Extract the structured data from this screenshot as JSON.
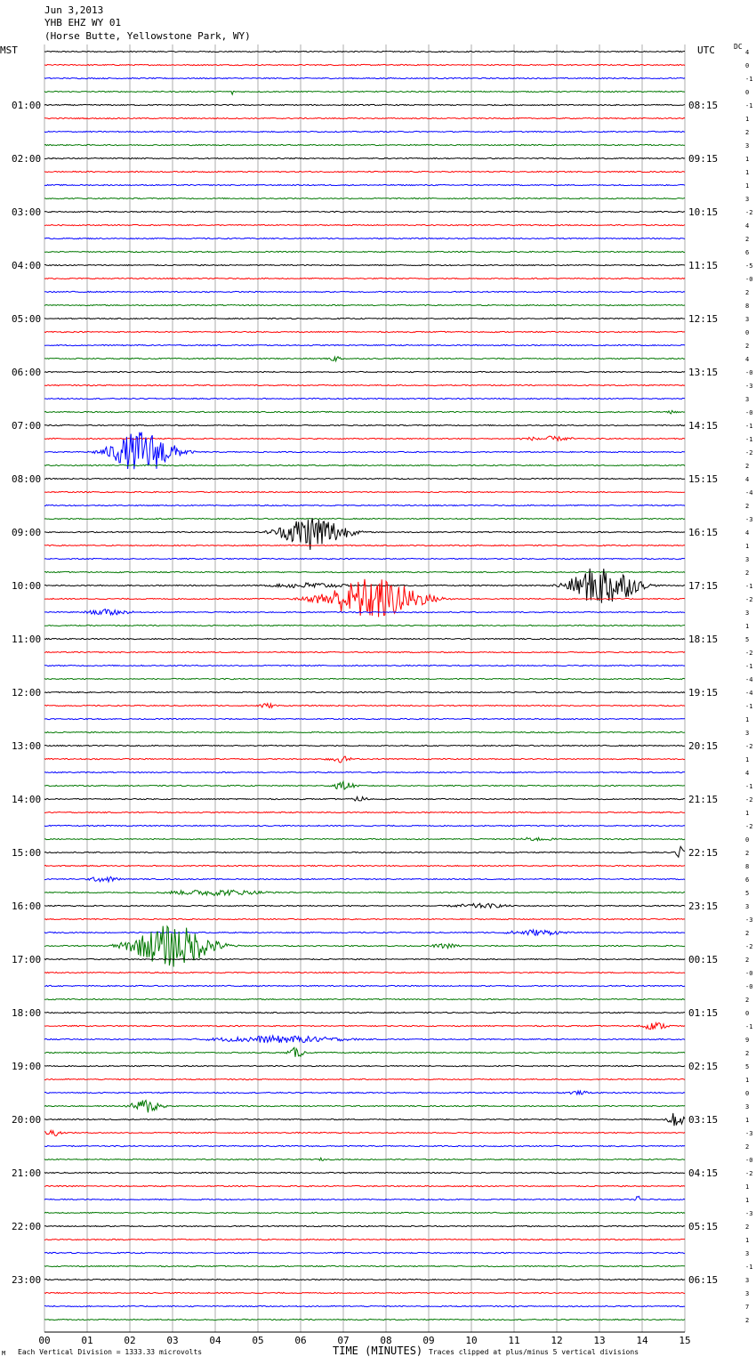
{
  "header": {
    "line1": "Jun 3,2013",
    "line2": "YHB EHZ WY 01",
    "line3": "(Horse Butte, Yellowstone Park, WY)"
  },
  "left_axis_title": "MST",
  "right_axis_title": "UTC",
  "dc_label": "DC",
  "footer": {
    "scale_note": "Each Vertical Division = 1333.33 microvolts",
    "clip_note": "Traces clipped at plus/minus 5 vertical divisions",
    "corner_mark": "M"
  },
  "colors": {
    "black": "#000000",
    "red": "#ff0000",
    "blue": "#0000ff",
    "green": "#007700",
    "grid": "#999999"
  },
  "chart_data": {
    "type": "line",
    "title": "YHB EHZ WY 01 (Horse Butte, Yellowstone Park, WY) Jun 3,2013",
    "xlabel": "TIME (MINUTES)",
    "xlim": [
      0,
      15
    ],
    "x_ticks": [
      "00",
      "01",
      "02",
      "03",
      "04",
      "05",
      "06",
      "07",
      "08",
      "09",
      "10",
      "11",
      "12",
      "13",
      "14",
      "15"
    ],
    "traces_per_hour": 4,
    "trace_colors": [
      "black",
      "red",
      "blue",
      "green"
    ],
    "left_hour_labels": [
      "01:00",
      "02:00",
      "03:00",
      "04:00",
      "05:00",
      "06:00",
      "07:00",
      "08:00",
      "09:00",
      "10:00",
      "11:00",
      "12:00",
      "13:00",
      "14:00",
      "15:00",
      "16:00",
      "17:00",
      "18:00",
      "19:00",
      "20:00",
      "21:00",
      "22:00",
      "23:00"
    ],
    "right_hour_labels": [
      "08:15",
      "09:15",
      "10:15",
      "11:15",
      "12:15",
      "13:15",
      "14:15",
      "15:15",
      "16:15",
      "17:15",
      "18:15",
      "19:15",
      "20:15",
      "21:15",
      "22:15",
      "23:15",
      "00:15",
      "01:15",
      "02:15",
      "03:15",
      "04:15",
      "05:15",
      "06:15"
    ],
    "dc_offsets": [
      "4",
      "0",
      "-1",
      "0",
      "-1",
      "1",
      "2",
      "3",
      "1",
      "1",
      "1",
      "3",
      "-2",
      "4",
      "2",
      "6",
      "-5",
      "-0",
      "2",
      "8",
      "3",
      "0",
      "2",
      "4",
      "-0",
      "-3",
      "3",
      "-0",
      "-1",
      "-1",
      "-2",
      "2",
      "4",
      "-4",
      "2",
      "-3",
      "4",
      "1",
      "3",
      "2",
      "-1",
      "-2",
      "3",
      "1",
      "5",
      "-2",
      "-1",
      "-4",
      "-4",
      "-1",
      "1",
      "3",
      "-2",
      "1",
      "4",
      "-1",
      "-2",
      "1",
      "-2",
      "0",
      "2",
      "8",
      "6",
      "5",
      "3",
      "-3",
      "2",
      "-2",
      "2",
      "-0",
      "-0",
      "2",
      "0",
      "-1",
      "9",
      "2",
      "5",
      "1",
      "0",
      "3",
      "1",
      "-3",
      "2",
      "-0",
      "-2",
      "1",
      "1",
      "-3",
      "2",
      "1",
      "3",
      "-1",
      "3",
      "3",
      "7",
      "2"
    ],
    "events": [
      {
        "trace": 3,
        "minute": 4.4,
        "amp": 0.8,
        "dur": 0.05
      },
      {
        "trace": 23,
        "minute": 6.8,
        "amp": 0.5,
        "dur": 0.5
      },
      {
        "trace": 27,
        "minute": 14.7,
        "amp": 0.3,
        "dur": 0.3
      },
      {
        "trace": 29,
        "minute": 11.8,
        "amp": 0.4,
        "dur": 1.8
      },
      {
        "trace": 30,
        "minute": 2.3,
        "amp": 3.5,
        "dur": 2.0
      },
      {
        "trace": 36,
        "minute": 6.3,
        "amp": 3.0,
        "dur": 2.0
      },
      {
        "trace": 40,
        "minute": 13.1,
        "amp": 3.5,
        "dur": 2.0
      },
      {
        "trace": 40,
        "minute": 6.2,
        "amp": 0.5,
        "dur": 2.5
      },
      {
        "trace": 41,
        "minute": 7.7,
        "amp": 3.5,
        "dur": 3.0
      },
      {
        "trace": 42,
        "minute": 1.5,
        "amp": 0.5,
        "dur": 1.5
      },
      {
        "trace": 49,
        "minute": 5.2,
        "amp": 0.4,
        "dur": 0.8
      },
      {
        "trace": 53,
        "minute": 6.9,
        "amp": 0.6,
        "dur": 0.8
      },
      {
        "trace": 55,
        "minute": 7.0,
        "amp": 0.7,
        "dur": 0.8
      },
      {
        "trace": 56,
        "minute": 7.4,
        "amp": 0.5,
        "dur": 0.5
      },
      {
        "trace": 59,
        "minute": 11.5,
        "amp": 0.3,
        "dur": 1.5
      },
      {
        "trace": 60,
        "minute": 14.9,
        "amp": 1.2,
        "dur": 0.3
      },
      {
        "trace": 62,
        "minute": 1.4,
        "amp": 0.5,
        "dur": 1.0
      },
      {
        "trace": 63,
        "minute": 4.0,
        "amp": 0.5,
        "dur": 3.5
      },
      {
        "trace": 64,
        "minute": 10.2,
        "amp": 0.4,
        "dur": 2.0
      },
      {
        "trace": 66,
        "minute": 11.5,
        "amp": 0.5,
        "dur": 2.0
      },
      {
        "trace": 67,
        "minute": 3.0,
        "amp": 3.5,
        "dur": 2.5
      },
      {
        "trace": 67,
        "minute": 9.4,
        "amp": 0.4,
        "dur": 1.0
      },
      {
        "trace": 73,
        "minute": 14.3,
        "amp": 0.6,
        "dur": 1.0
      },
      {
        "trace": 74,
        "minute": 5.5,
        "amp": 0.6,
        "dur": 4.5
      },
      {
        "trace": 75,
        "minute": 5.9,
        "amp": 0.9,
        "dur": 0.5
      },
      {
        "trace": 78,
        "minute": 12.5,
        "amp": 0.3,
        "dur": 1.0
      },
      {
        "trace": 79,
        "minute": 2.4,
        "amp": 1.2,
        "dur": 1.0
      },
      {
        "trace": 80,
        "minute": 14.8,
        "amp": 1.2,
        "dur": 0.6
      },
      {
        "trace": 81,
        "minute": 0.2,
        "amp": 0.6,
        "dur": 0.6
      },
      {
        "trace": 83,
        "minute": 6.5,
        "amp": 0.3,
        "dur": 0.2
      },
      {
        "trace": 86,
        "minute": 13.9,
        "amp": 0.6,
        "dur": 0.2
      }
    ]
  }
}
